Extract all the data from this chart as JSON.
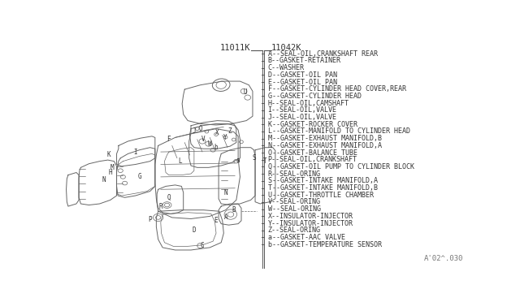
{
  "bg_color": "#ffffff",
  "part_number_left": "11011K",
  "part_number_right": "11042K",
  "footer_text": "A'02^.030",
  "legend_items": [
    "A--SEAL-OIL,CRANKSHAFT REAR",
    "B--GASKET-RETAINER",
    "C--WASHER",
    "D--GASKET-OIL PAN",
    "E--GASKET-OIL PAN",
    "F--GASKET-CYLINDER HEAD COVER,REAR",
    "G--GASKET-CYLINDER HEAD",
    "H--SEAL-OIL,CAMSHAFT",
    "I--SEAL-OIL,VALVE",
    "J--SEAL-OIL,VALVE",
    "K--GASKET-ROCKER COVER",
    "L--GASKET-MANIFOLD TO CYLINDER HEAD",
    "M--GASKET-EXHAUST MANIFOLD,B",
    "N--GASKET-EXHAUST MANIFOLD,A",
    "O--GASKET-BALANCE TUBE",
    "P--SEAL-OIL,CRANKSHAFT",
    "Q--GASKET-OIL PUMP TO CYLINDER BLOCK",
    "R--SEAL-ORING",
    "S--GASKET-INTAKE MANIFOLD,A",
    "T--GASKET-INTAKE MANIFOLD,B",
    "U--GASKET-THROTTLE CHAMBER",
    "V--SEAL-ORING",
    "W--SEAL-ORING",
    "X--INSULATOR-INJECTOR",
    "Y--INSULATOR-INJECTOR",
    "Z--SEAL-ORING",
    "a--GASKET-AAC VALVE",
    "b--GASKET-TEMPERATURE SENSOR"
  ],
  "line_color": "#555555",
  "text_color": "#333333",
  "diagram_line_color": "#666666",
  "part_label_fontsize": 5.5,
  "legend_fontsize": 6.0,
  "header_fontsize": 7.5
}
